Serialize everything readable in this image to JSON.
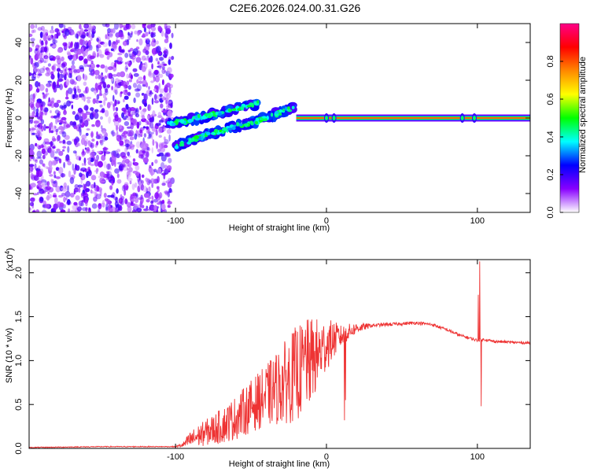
{
  "page": {
    "title": "C2E6.2026.024.00.31.G26"
  },
  "chart_data": [
    {
      "type": "heatmap",
      "name": "spectrogram",
      "xlabel": "Height of straight line (km)",
      "ylabel": "Frequency (Hz)",
      "xlim": [
        -197,
        135
      ],
      "ylim": [
        -50,
        50
      ],
      "xticks": [
        -100,
        0,
        100
      ],
      "yticks": [
        -40,
        -20,
        0,
        20,
        40
      ],
      "colorbar": {
        "label": "Normalized spectral amplitude",
        "range": [
          0.0,
          1.0
        ],
        "ticks": [
          "0.0",
          "0.2",
          "0.4",
          "0.6",
          "0.8"
        ],
        "tick_values": [
          0.0,
          0.2,
          0.4,
          0.6,
          0.8
        ],
        "colors": [
          "#ffffff",
          "#8800ff",
          "#0000ff",
          "#00ffff",
          "#00ff00",
          "#ffff00",
          "#ff8800",
          "#ff0000",
          "#ff0088"
        ]
      },
      "noise_region": {
        "x_range": [
          -197,
          -102
        ],
        "amplitude": 0.12
      },
      "features": [
        {
          "label": "upper wavy band",
          "x": [
            -105,
            -95,
            -85,
            -75,
            -65,
            -55,
            -45
          ],
          "y": [
            -3,
            -2,
            0,
            2,
            4,
            6,
            8
          ]
        },
        {
          "label": "lower wavy band",
          "x": [
            -100,
            -90,
            -80,
            -70,
            -60,
            -50,
            -40,
            -30,
            -20
          ],
          "y": [
            -15,
            -12,
            -9,
            -7,
            -4,
            -3,
            0,
            3,
            6
          ]
        },
        {
          "label": "steady tone",
          "x": [
            -20,
            135
          ],
          "y": [
            0,
            0
          ]
        }
      ]
    },
    {
      "type": "line",
      "name": "snr",
      "xlabel": "Height of straight line (km)",
      "ylabel": "SNR (10 * v/v)",
      "multiplier": "(x10",
      "multiplier_exp": "4",
      "multiplier_close": ")",
      "xlim": [
        -197,
        135
      ],
      "ylim": [
        0,
        2.15
      ],
      "xticks": [
        -100,
        0,
        100
      ],
      "yticks": [
        "0.0",
        "0.5",
        "1.0",
        "1.5",
        "2.0"
      ],
      "ytick_values": [
        0.0,
        0.5,
        1.0,
        1.5,
        2.0
      ],
      "color": "#ee3333",
      "envelope": {
        "x": [
          -197,
          -150,
          -100,
          -95,
          -90,
          -80,
          -70,
          -60,
          -50,
          -40,
          -30,
          -20,
          -15,
          -10,
          -5,
          0,
          5,
          10,
          15,
          20,
          30,
          40,
          50,
          60,
          70,
          80,
          88,
          92,
          96,
          100,
          105,
          110,
          120,
          135
        ],
        "y": [
          0.01,
          0.02,
          0.02,
          0.04,
          0.1,
          0.18,
          0.25,
          0.35,
          0.48,
          0.6,
          0.72,
          0.85,
          0.92,
          1.0,
          1.08,
          1.18,
          1.24,
          1.28,
          1.33,
          1.37,
          1.4,
          1.41,
          1.42,
          1.43,
          1.41,
          1.35,
          1.29,
          1.27,
          1.25,
          1.23,
          1.24,
          1.22,
          1.21,
          1.2
        ]
      },
      "noise_amplitude": {
        "x": [
          -197,
          -100,
          -95,
          -90,
          -80,
          -60,
          -40,
          -20,
          -10,
          0,
          10,
          20,
          30,
          135
        ],
        "a": [
          0.005,
          0.005,
          0.03,
          0.1,
          0.15,
          0.25,
          0.35,
          0.55,
          0.5,
          0.3,
          0.12,
          0.06,
          0.02,
          0.015
        ]
      },
      "spikes": [
        {
          "x": -14,
          "y": 1.35
        },
        {
          "x": 12,
          "y": 0.32
        },
        {
          "x": 12.6,
          "y": 0.55
        },
        {
          "x": 101.5,
          "y": 2.13
        },
        {
          "x": 102.5,
          "y": 0.48
        },
        {
          "x": 100.5,
          "y": 1.75
        }
      ]
    }
  ]
}
